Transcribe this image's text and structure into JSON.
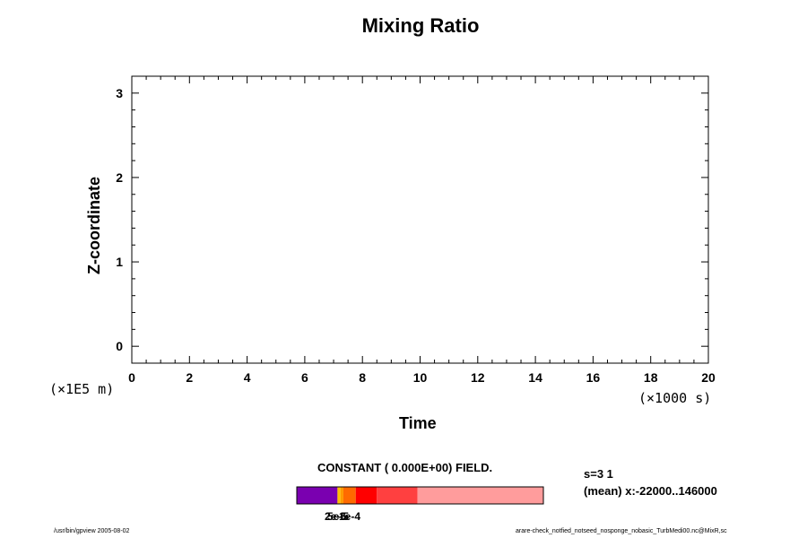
{
  "chart_data": {
    "type": "heatmap",
    "title": "Mixing Ratio",
    "xlabel": "Time",
    "ylabel": "Z-coordinate",
    "x_scale_note": "(×1000 s)",
    "y_scale_note": "(×1E5 m)",
    "xlim": [
      0,
      20
    ],
    "ylim": [
      -0.2,
      3.2
    ],
    "x_ticks": [
      0,
      2,
      4,
      6,
      8,
      10,
      12,
      14,
      16,
      18,
      20
    ],
    "y_ticks": [
      0,
      1,
      2,
      3
    ],
    "field_note": "CONSTANT ( 0.000E+00) FIELD.",
    "values": [],
    "colorbar": {
      "tick_labels": [
        "2e-6",
        "5e-5",
        "1e-4"
      ],
      "segments": [
        {
          "color": "#7a00b0",
          "frac": 0.165
        },
        {
          "color": "#ffc000",
          "frac": 0.012
        },
        {
          "color": "#ff9900",
          "frac": 0.012
        },
        {
          "color": "#ff6a00",
          "frac": 0.05
        },
        {
          "color": "#ff0000",
          "frac": 0.085
        },
        {
          "color": "#ff4040",
          "frac": 0.165
        },
        {
          "color": "#ff9c9c",
          "frac": 0.511
        }
      ]
    }
  },
  "annotation": {
    "line1": "s=3 1",
    "line2": "(mean) x:-22000..146000"
  },
  "footer": {
    "left": "/usr/bin/gpview 2005-08-02",
    "right": "arare-check_notfied_notseed_nosponge_nobasic_TurbMedi00.nc@MixR,sc"
  }
}
